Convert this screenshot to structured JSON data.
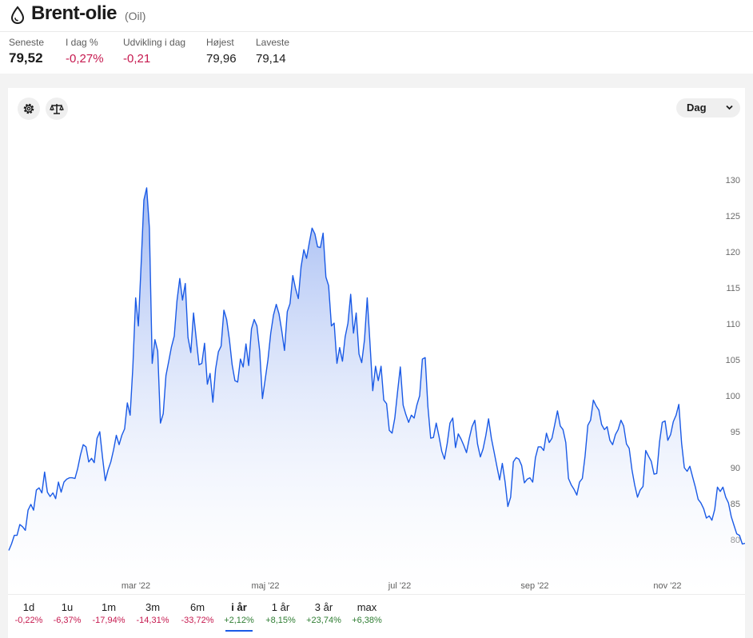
{
  "header": {
    "title": "Brent-olie",
    "subtitle": "(Oil)",
    "icon": "droplet-icon"
  },
  "stats": [
    {
      "label": "Seneste",
      "value": "79,52"
    },
    {
      "label": "I dag %",
      "value": "-0,27%"
    },
    {
      "label": "Udvikling i dag",
      "value": "-0,21"
    },
    {
      "label": "Højest",
      "value": "79,96"
    },
    {
      "label": "Laveste",
      "value": "79,14"
    }
  ],
  "toolbar": {
    "settings_icon": "gear-icon",
    "compare_icon": "scale-icon",
    "interval_selected": "Dag"
  },
  "colors": {
    "line": "#1a5ae6",
    "negative": "#c6194f",
    "positive": "#2e7d32"
  },
  "tabs": [
    {
      "label": "1d",
      "change": "-0,22%"
    },
    {
      "label": "1u",
      "change": "-6,37%"
    },
    {
      "label": "1m",
      "change": "-17,94%"
    },
    {
      "label": "3m",
      "change": "-14,31%"
    },
    {
      "label": "6m",
      "change": "-33,72%"
    },
    {
      "label": "i år",
      "change": "+2,12%",
      "active": true
    },
    {
      "label": "1 år",
      "change": "+8,15%"
    },
    {
      "label": "3 år",
      "change": "+23,74%"
    },
    {
      "label": "max",
      "change": "+6,38%"
    }
  ],
  "chart_data": {
    "type": "area",
    "y_ticks": [
      "130",
      "125",
      "120",
      "115",
      "110",
      "105",
      "100",
      "95",
      "90",
      "85",
      "80"
    ],
    "x_ticks": [
      "mar '22",
      "maj '22",
      "jul '22",
      "sep '22",
      "nov '22"
    ],
    "ylim": [
      78,
      131
    ],
    "series": [
      {
        "values": [
          78.5,
          79.4,
          80.6,
          80.6,
          82.1,
          81.8,
          81.3,
          84.1,
          84.9,
          84.1,
          86.9,
          87.2,
          86.5,
          89.4,
          86.6,
          86.0,
          86.5,
          85.7,
          88.0,
          86.6,
          88.0,
          88.4,
          88.6,
          88.6,
          88.5,
          89.9,
          91.8,
          93.2,
          92.9,
          90.8,
          91.3,
          90.7,
          94.1,
          95.0,
          91.4,
          88.2,
          89.7,
          90.8,
          92.5,
          94.5,
          93.2,
          94.5,
          95.4,
          99.0,
          97.3,
          104.0,
          113.6,
          109.7,
          118.4,
          127.2,
          128.9,
          123.3,
          104.5,
          107.8,
          106.2,
          96.2,
          97.5,
          102.8,
          104.8,
          106.8,
          108.3,
          113.2,
          116.3,
          113.3,
          115.6,
          108.1,
          106.0,
          111.5,
          107.8,
          104.3,
          104.5,
          107.3,
          101.6,
          103.1,
          99.1,
          103.7,
          106.1,
          106.9,
          111.9,
          110.6,
          107.8,
          104.3,
          102.1,
          101.9,
          105.1,
          104.0,
          107.2,
          104.2,
          109.3,
          110.6,
          109.7,
          106.2,
          99.6,
          102.3,
          105.0,
          108.7,
          111.2,
          112.7,
          111.4,
          109.0,
          106.3,
          111.7,
          112.8,
          116.7,
          114.9,
          113.5,
          117.9,
          120.3,
          119.1,
          121.3,
          123.3,
          122.5,
          120.7,
          120.6,
          122.6,
          116.5,
          115.3,
          109.7,
          110.1,
          104.5,
          106.7,
          104.8,
          108.2,
          110.1,
          114.1,
          108.7,
          111.5,
          105.8,
          104.6,
          107.8,
          113.6,
          107.2,
          100.7,
          104.1,
          102.1,
          104.1,
          99.4,
          98.9,
          95.2,
          94.8,
          96.9,
          100.6,
          104.0,
          98.7,
          97.4,
          96.3,
          97.3,
          96.9,
          98.7,
          100.0,
          105.1,
          105.3,
          98.5,
          94.1,
          94.2,
          96.2,
          94.4,
          92.3,
          91.2,
          93.4,
          96.2,
          96.9,
          92.8,
          94.7,
          94.0,
          93.1,
          92.1,
          94.1,
          95.7,
          96.6,
          93.3,
          91.5,
          92.6,
          94.5,
          96.8,
          94.1,
          92.2,
          90.2,
          88.3,
          90.6,
          88.0,
          84.6,
          85.9,
          90.8,
          91.4,
          91.2,
          90.3,
          87.9,
          88.4,
          88.6,
          88.0,
          91.4,
          92.9,
          92.9,
          92.4,
          94.8,
          93.5,
          94.1,
          96.0,
          97.9,
          95.8,
          95.3,
          93.5,
          88.5,
          87.6,
          87.0,
          86.2,
          88.0,
          88.5,
          91.6,
          95.9,
          96.6,
          99.4,
          98.6,
          98.0,
          96.0,
          95.3,
          95.7,
          93.8,
          93.2,
          94.6,
          95.3,
          96.6,
          95.8,
          93.3,
          92.7,
          89.7,
          87.6,
          85.9,
          86.9,
          87.4,
          92.4,
          91.6,
          90.9,
          89.1,
          89.2,
          93.6,
          96.3,
          96.5,
          93.8,
          94.6,
          96.4,
          97.3,
          98.8,
          93.4,
          90.0,
          89.5,
          90.2,
          88.7,
          87.3,
          85.6,
          85.1,
          84.3,
          83.0,
          83.3,
          82.7,
          84.2,
          87.3,
          86.7,
          87.3,
          85.9,
          85.1,
          83.2,
          82.0,
          80.8,
          80.6,
          79.4,
          79.5
        ]
      }
    ]
  }
}
